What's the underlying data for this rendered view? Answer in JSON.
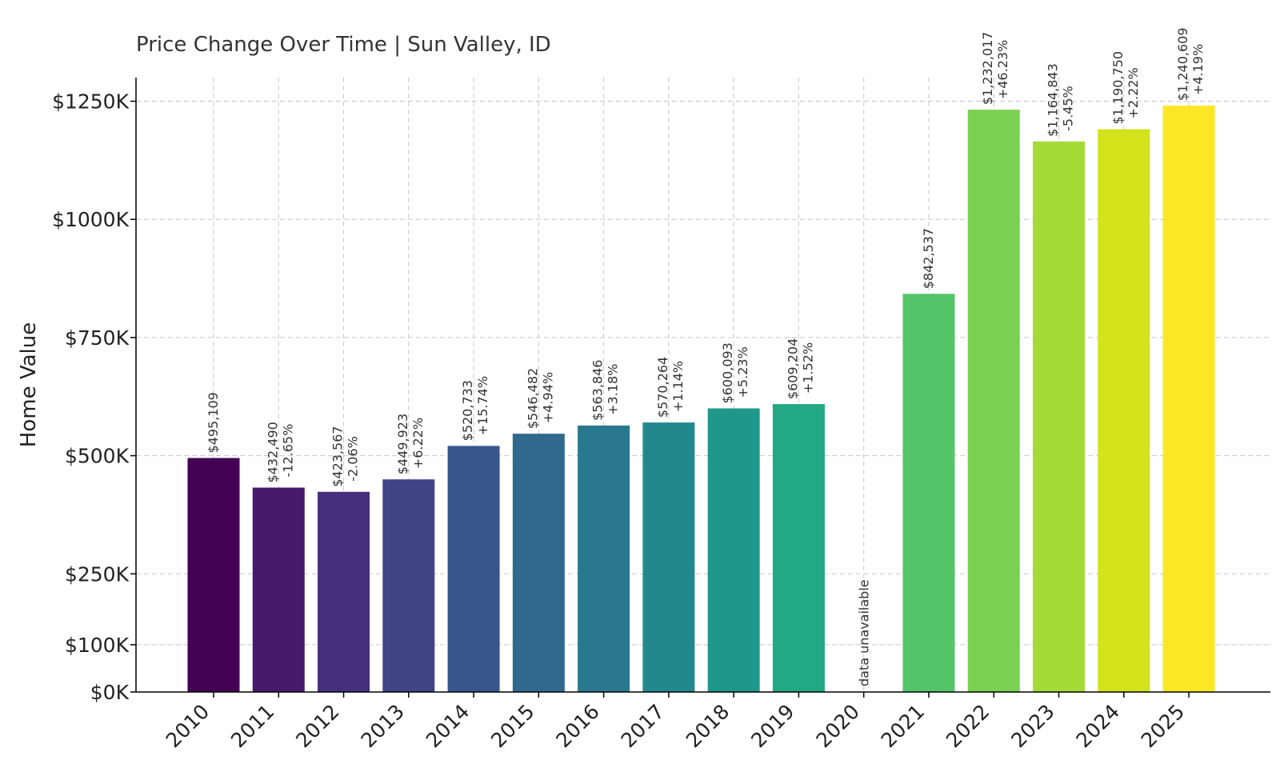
{
  "chart_data": {
    "type": "bar",
    "title": "Price Change Over Time | Sun Valley, ID",
    "xlabel": "",
    "ylabel": "Home Value",
    "ylim": [
      0,
      1300000
    ],
    "yticks": [
      {
        "value": 0,
        "label": "$0K"
      },
      {
        "value": 100000,
        "label": "$100K"
      },
      {
        "value": 250000,
        "label": "$250K"
      },
      {
        "value": 500000,
        "label": "$500K"
      },
      {
        "value": 750000,
        "label": "$750K"
      },
      {
        "value": 1000000,
        "label": "$1000K"
      },
      {
        "value": 1250000,
        "label": "$1250K"
      }
    ],
    "grid": true,
    "categories": [
      "2010",
      "2011",
      "2012",
      "2013",
      "2014",
      "2015",
      "2016",
      "2017",
      "2018",
      "2019",
      "2020",
      "2021",
      "2022",
      "2023",
      "2024",
      "2025"
    ],
    "values": [
      495109,
      432490,
      423567,
      449923,
      520733,
      546482,
      563846,
      570264,
      600093,
      609204,
      null,
      842537,
      1232017,
      1164843,
      1190750,
      1240609
    ],
    "value_labels": [
      "$495,109",
      "$432,490",
      "$423,567",
      "$449,923",
      "$520,733",
      "$546,482",
      "$563,846",
      "$570,264",
      "$600,093",
      "$609,204",
      "",
      "$842,537",
      "$1,232,017",
      "$1,164,843",
      "$1,190,750",
      "$1,240,609"
    ],
    "change_labels": [
      "",
      "-12.65%",
      "-2.06%",
      "+6.22%",
      "+15.74%",
      "+4.94%",
      "+3.18%",
      "+1.14%",
      "+5.23%",
      "+1.52%",
      "",
      "",
      "+46.23%",
      "-5.45%",
      "+2.22%",
      "+4.19%"
    ],
    "missing_label": "data unavailable",
    "colors": [
      "#440154",
      "#481a6c",
      "#472f7d",
      "#414487",
      "#39568c",
      "#31688e",
      "#2a788e",
      "#23888e",
      "#1f988b",
      "#22a884",
      "#35b779",
      "#54c568",
      "#7ad151",
      "#a5db36",
      "#d2e21b",
      "#fde725"
    ]
  }
}
